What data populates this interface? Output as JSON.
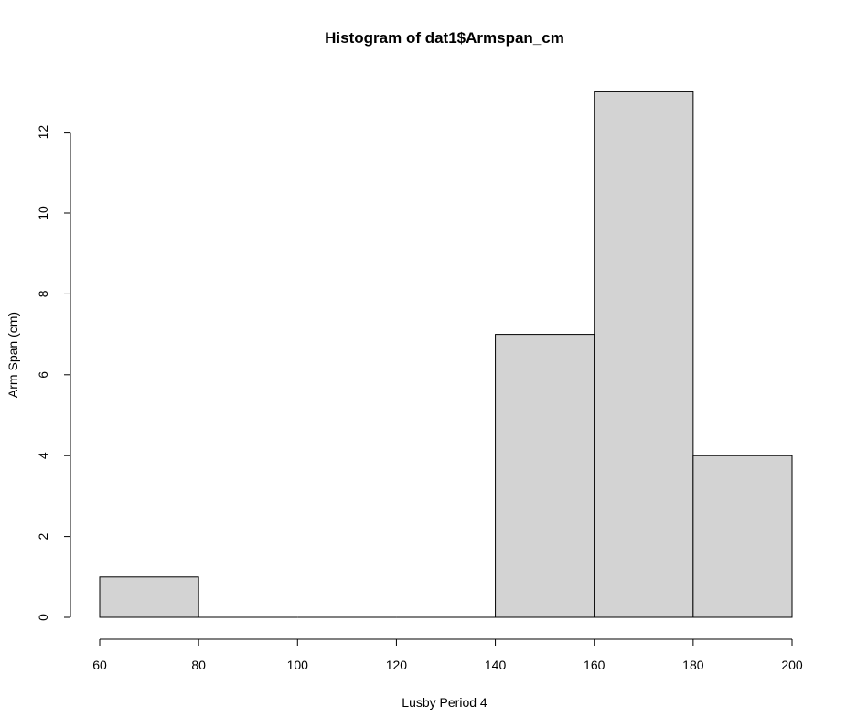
{
  "chart_data": {
    "type": "bar",
    "title": "Histogram of dat1$Armspan_cm",
    "xlabel": "Lusby Period 4",
    "ylabel": "Arm Span (cm)",
    "bins": [
      {
        "start": 60,
        "end": 80,
        "count": 1
      },
      {
        "start": 80,
        "end": 100,
        "count": 0
      },
      {
        "start": 100,
        "end": 120,
        "count": 0
      },
      {
        "start": 120,
        "end": 140,
        "count": 0
      },
      {
        "start": 140,
        "end": 160,
        "count": 7
      },
      {
        "start": 160,
        "end": 180,
        "count": 13
      },
      {
        "start": 180,
        "end": 200,
        "count": 4
      }
    ],
    "xlim": [
      60,
      200
    ],
    "ylim": [
      0,
      13
    ],
    "xticks": [
      "60",
      "80",
      "100",
      "120",
      "140",
      "160",
      "180",
      "200"
    ],
    "yticks": [
      "0",
      "2",
      "4",
      "6",
      "8",
      "10",
      "12"
    ],
    "bar_color": "#d3d3d3",
    "grid": false,
    "legend": "none"
  }
}
